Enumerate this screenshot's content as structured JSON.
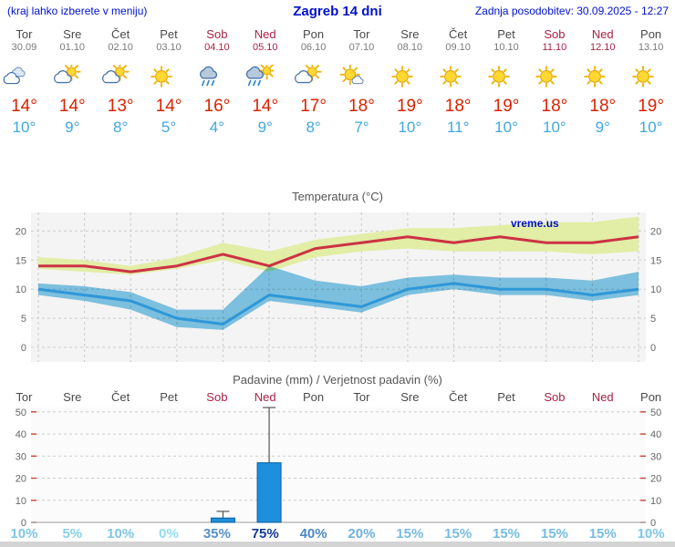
{
  "header": {
    "left_note": "(kraj lahko izberete v meniju)",
    "title": "Zagreb 14 dni",
    "last_update": "Zadnja posodobitev: 30.09.2025 - 12:27"
  },
  "colors": {
    "header_blue": "#0011cc",
    "weekday": "#4a4a4a",
    "weekend": "#aa2244",
    "temp_high": "#dd2200",
    "temp_low": "#3fa8e0",
    "max_line": "#cc3344",
    "max_band": "#e2eda6",
    "min_line": "#2f97d8",
    "min_band": "#82c8e8",
    "bar_fill": "#1e8fdc",
    "bar_edge": "#0e5e9e",
    "grid": "#cccccc",
    "axis_tick_red": "#cc4433",
    "prob_low": "#8fdcf2",
    "prob_high": "#123a9c"
  },
  "days": [
    {
      "name": "Tor",
      "date": "30.09",
      "weekend": false,
      "icon": "cloudy",
      "tmax": 14,
      "tmin": 10
    },
    {
      "name": "Sre",
      "date": "01.10",
      "weekend": false,
      "icon": "partly-cloudy",
      "tmax": 14,
      "tmin": 9
    },
    {
      "name": "Čet",
      "date": "02.10",
      "weekend": false,
      "icon": "partly-cloudy",
      "tmax": 13,
      "tmin": 8
    },
    {
      "name": "Pet",
      "date": "03.10",
      "weekend": false,
      "icon": "sunny",
      "tmax": 14,
      "tmin": 5
    },
    {
      "name": "Sob",
      "date": "04.10",
      "weekend": true,
      "icon": "rain",
      "tmax": 16,
      "tmin": 4
    },
    {
      "name": "Ned",
      "date": "05.10",
      "weekend": true,
      "icon": "rain-sun",
      "tmax": 14,
      "tmin": 9
    },
    {
      "name": "Pon",
      "date": "06.10",
      "weekend": false,
      "icon": "partly-cloudy",
      "tmax": 17,
      "tmin": 8
    },
    {
      "name": "Tor",
      "date": "07.10",
      "weekend": false,
      "icon": "mostly-sunny",
      "tmax": 18,
      "tmin": 7
    },
    {
      "name": "Sre",
      "date": "08.10",
      "weekend": false,
      "icon": "sunny",
      "tmax": 19,
      "tmin": 10
    },
    {
      "name": "Čet",
      "date": "09.10",
      "weekend": false,
      "icon": "sunny",
      "tmax": 18,
      "tmin": 11
    },
    {
      "name": "Pet",
      "date": "10.10",
      "weekend": false,
      "icon": "sunny",
      "tmax": 19,
      "tmin": 10
    },
    {
      "name": "Sob",
      "date": "11.10",
      "weekend": true,
      "icon": "sunny",
      "tmax": 18,
      "tmin": 10
    },
    {
      "name": "Ned",
      "date": "12.10",
      "weekend": true,
      "icon": "sunny",
      "tmax": 18,
      "tmin": 9
    },
    {
      "name": "Pon",
      "date": "13.10",
      "weekend": false,
      "icon": "sunny",
      "tmax": 19,
      "tmin": 10
    }
  ],
  "chart_data": [
    {
      "type": "line",
      "title": "Temperatura (°C)",
      "watermark": "vreme.us",
      "x": [
        "Tor 30.09",
        "Sre 01.10",
        "Čet 02.10",
        "Pet 03.10",
        "Sob 04.10",
        "Ned 05.10",
        "Pon 06.10",
        "Tor 07.10",
        "Sre 08.10",
        "Čet 09.10",
        "Pet 10.10",
        "Sob 11.10",
        "Ned 12.10",
        "Pon 13.10"
      ],
      "series": [
        {
          "name": "max_temp",
          "values": [
            14,
            14,
            13,
            14,
            16,
            14,
            17,
            18,
            19,
            18,
            19,
            18,
            18,
            19
          ]
        },
        {
          "name": "max_range_upper",
          "values": [
            15.5,
            15,
            14,
            15.5,
            18,
            16.5,
            18.5,
            19.5,
            20.5,
            20.5,
            21,
            21.5,
            21.5,
            22.5
          ]
        },
        {
          "name": "max_range_lower",
          "values": [
            13.5,
            13,
            12.5,
            13.5,
            15,
            13,
            15.5,
            16.5,
            17,
            16.5,
            16.5,
            16.5,
            16,
            16.5
          ]
        },
        {
          "name": "min_temp",
          "values": [
            10,
            9,
            8,
            5,
            4,
            9,
            8,
            7,
            10,
            11,
            10,
            10,
            9,
            10
          ]
        },
        {
          "name": "min_range_upper",
          "values": [
            11,
            10.5,
            9.5,
            6.5,
            6.5,
            14,
            11.5,
            10.5,
            12,
            12.5,
            12,
            12,
            11.5,
            13
          ]
        },
        {
          "name": "min_range_lower",
          "values": [
            9,
            8,
            6.5,
            3.5,
            3,
            8,
            7,
            6,
            9,
            10,
            9,
            9,
            8,
            9
          ]
        }
      ],
      "ylim": [
        -2.5,
        23.2
      ],
      "yticks": [
        0,
        5,
        10,
        15,
        20
      ],
      "grid": true,
      "legend": "none"
    },
    {
      "type": "bar",
      "title": "Padavine (mm) / Verjetnost padavin (%)",
      "categories": [
        "Tor",
        "Sre",
        "Čet",
        "Pet",
        "Sob",
        "Ned",
        "Pon",
        "Tor",
        "Sre",
        "Čet",
        "Pet",
        "Sob",
        "Ned",
        "Pon"
      ],
      "precip_mm": [
        0,
        0,
        0,
        0,
        2,
        27,
        0,
        0,
        0,
        0,
        0,
        0,
        0,
        0
      ],
      "whisker_top": [
        0,
        0,
        0,
        0,
        5,
        52,
        0,
        0,
        0,
        0,
        0,
        0,
        0,
        0
      ],
      "probability_pct": [
        10,
        5,
        10,
        0,
        35,
        75,
        40,
        20,
        15,
        15,
        15,
        15,
        15,
        10
      ],
      "ylim": [
        0,
        52
      ],
      "yticks": [
        0,
        10,
        20,
        30,
        40,
        50
      ],
      "grid": true,
      "legend": "none"
    }
  ]
}
